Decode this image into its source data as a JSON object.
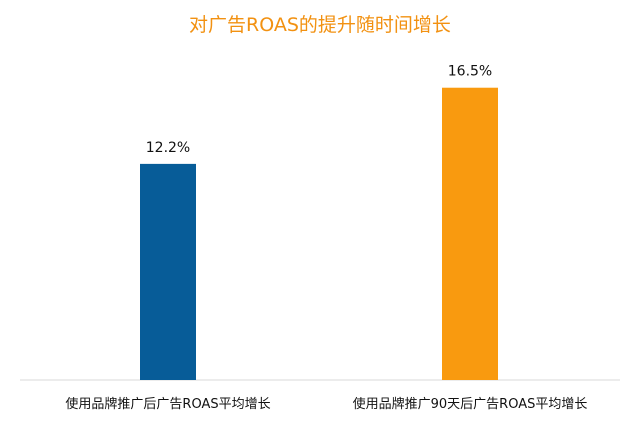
{
  "chart_data": {
    "type": "bar",
    "title": "对广告ROAS的提升随时间增长",
    "categories": [
      "使用品牌推广后广告ROAS平均增长",
      "使用品牌推广90天后广告ROAS平均增长"
    ],
    "values": [
      12.2,
      16.5
    ],
    "value_labels": [
      "12.2%",
      "16.5%"
    ],
    "colors": [
      "#075C98",
      "#F99A0F"
    ],
    "title_color": "#F29111",
    "ylim": [
      0,
      17.5
    ],
    "grid": false,
    "legend": "none",
    "xlabel": "",
    "ylabel": ""
  }
}
